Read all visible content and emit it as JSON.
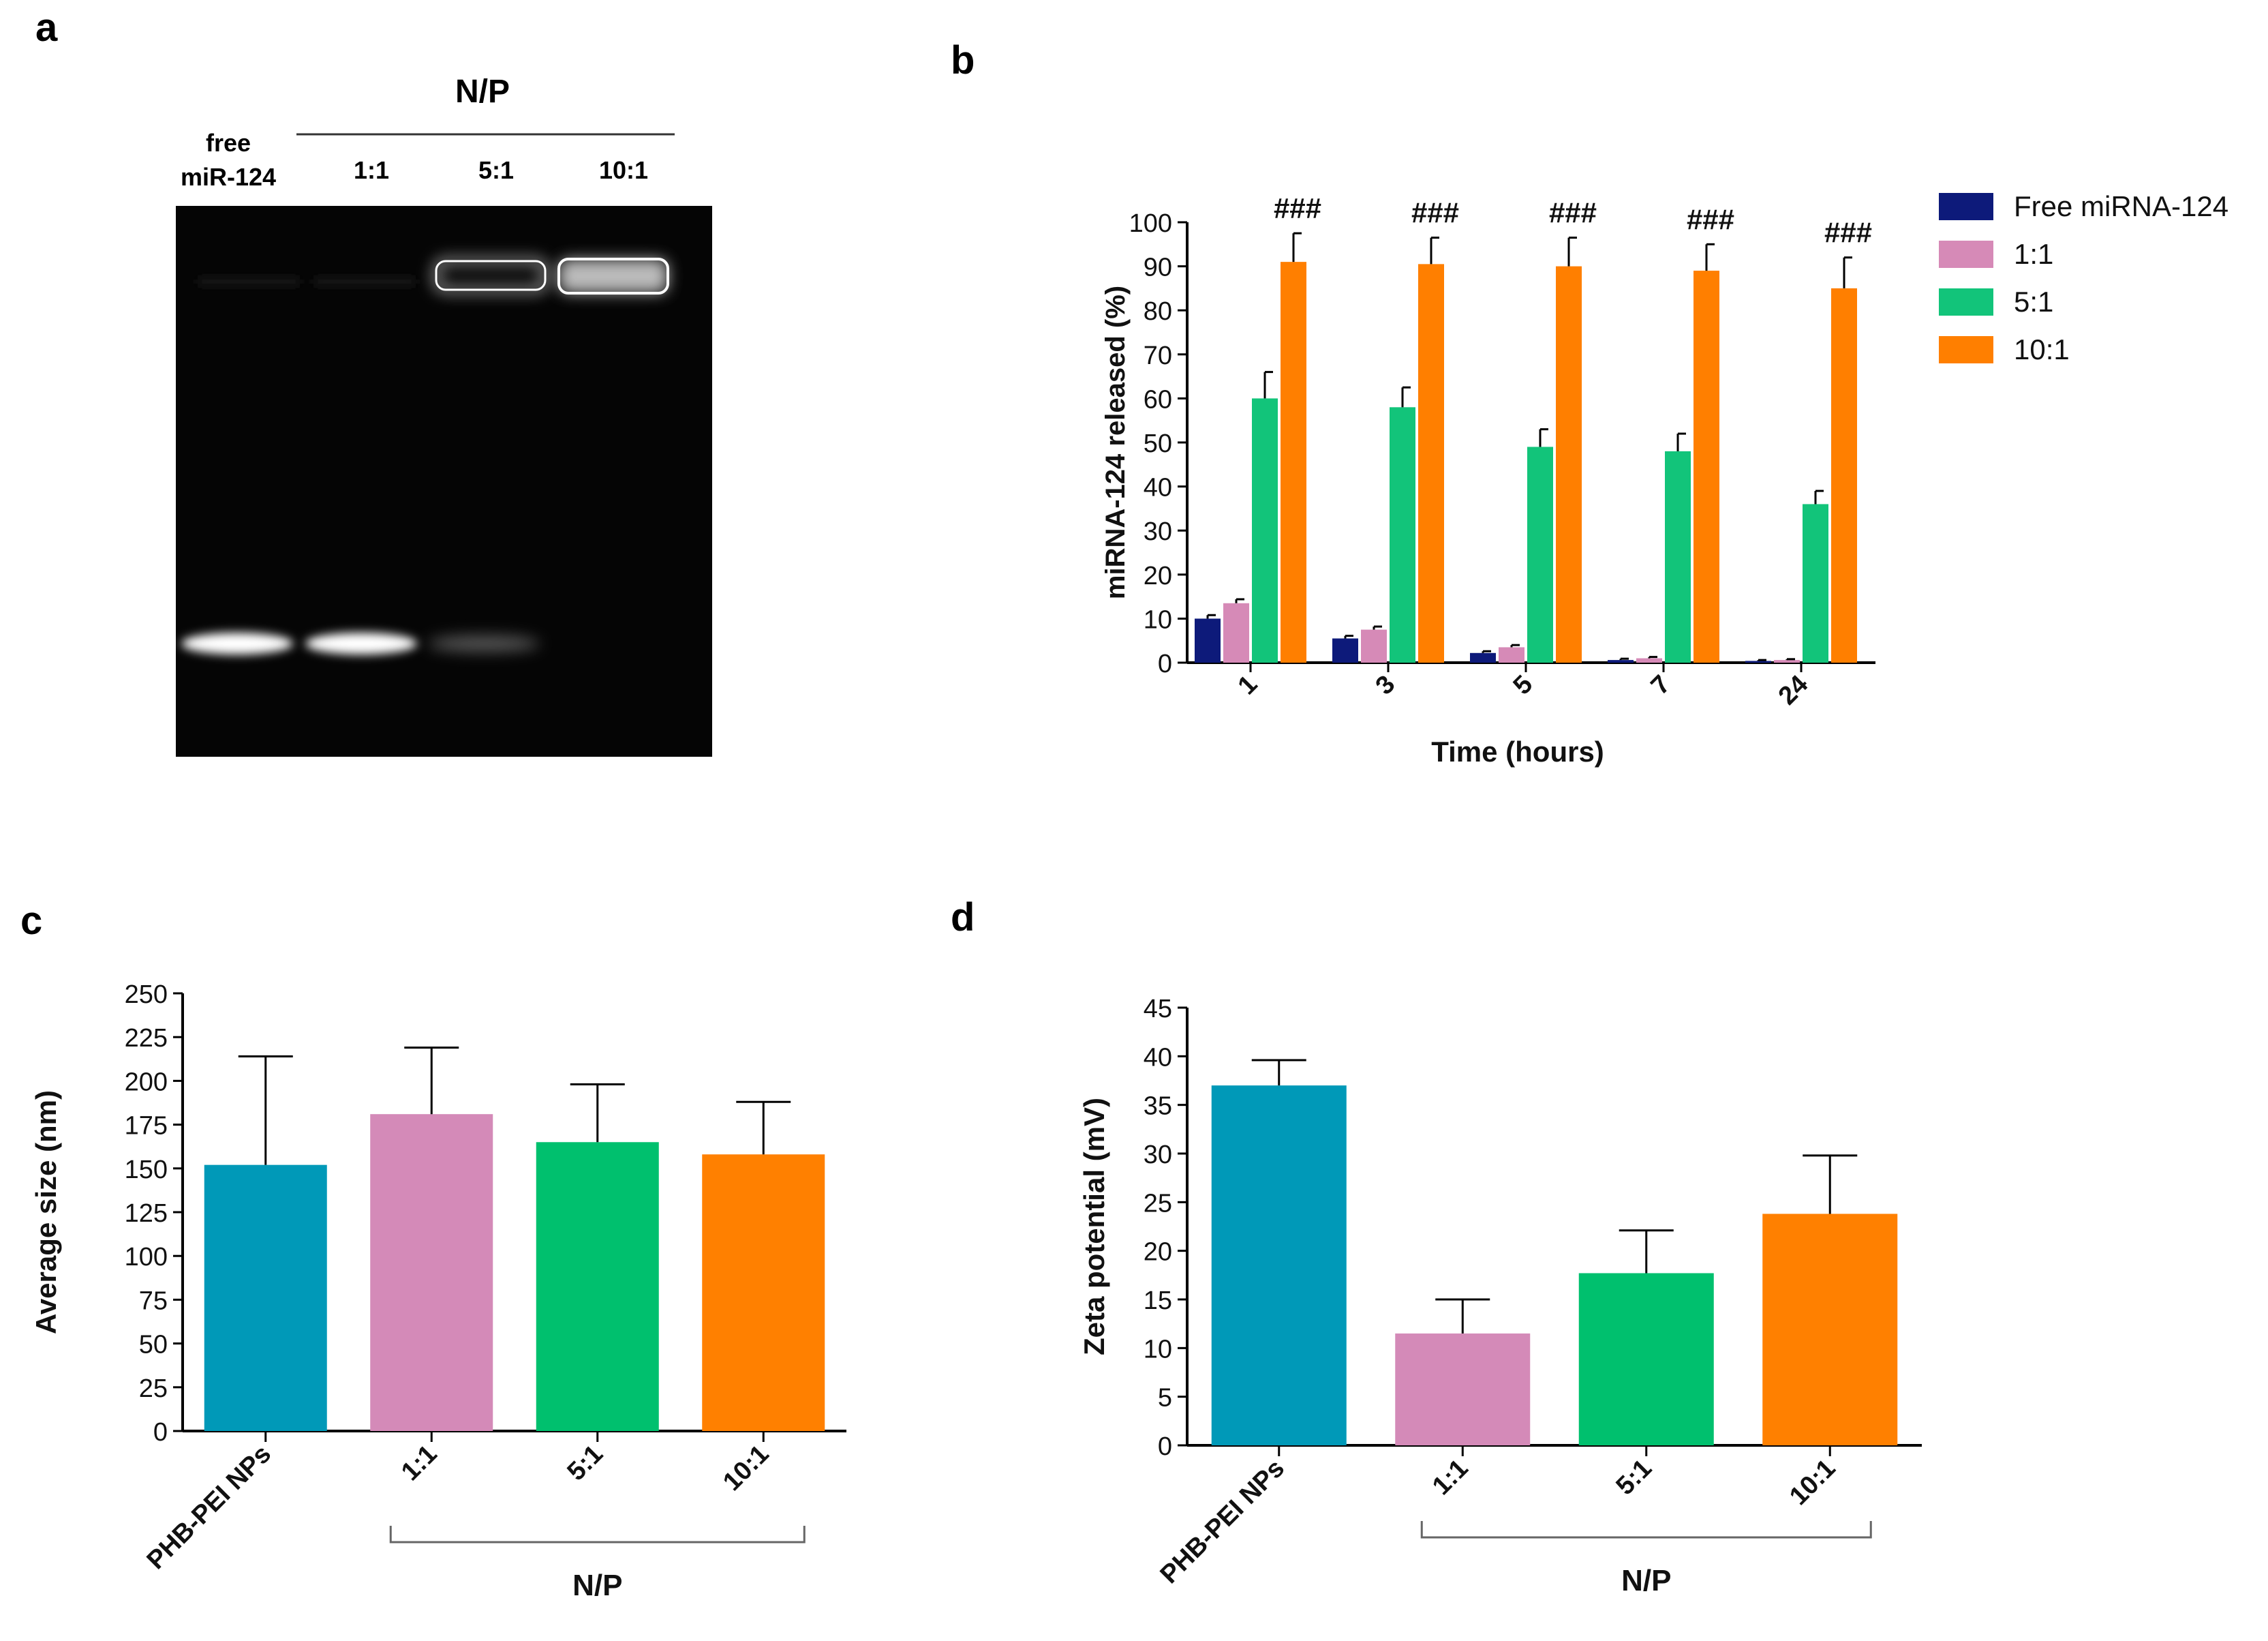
{
  "panels": {
    "a": {
      "letter": "a",
      "np_label": "N/P",
      "lanes": [
        "free\nmiR-124",
        "1:1",
        "5:1",
        "10:1"
      ]
    },
    "b": {
      "letter": "b"
    },
    "c": {
      "letter": "c",
      "np_group_label": "N/P"
    },
    "d": {
      "letter": "d",
      "np_group_label": "N/P"
    }
  },
  "chart_data": [
    {
      "panel": "b",
      "type": "bar",
      "title": "",
      "xlabel": "Time (hours)",
      "ylabel": "miRNA-124 released (%)",
      "ylim": [
        0,
        100
      ],
      "yticks": [
        0,
        10,
        20,
        30,
        40,
        50,
        60,
        70,
        80,
        90,
        100
      ],
      "categories": [
        "1",
        "3",
        "5",
        "7",
        "24"
      ],
      "series": [
        {
          "name": "Free miRNA-124",
          "color": "#0d1a7a",
          "values": [
            10,
            5.5,
            2.2,
            0.6,
            0.4
          ],
          "errors": [
            0.8,
            0.6,
            0.4,
            0.3,
            0.2
          ]
        },
        {
          "name": "1:1",
          "color": "#d68ab7",
          "values": [
            13.5,
            7.5,
            3.5,
            1.0,
            0.6
          ],
          "errors": [
            0.9,
            0.7,
            0.5,
            0.3,
            0.2
          ]
        },
        {
          "name": "5:1",
          "color": "#12c47a",
          "values": [
            60,
            58,
            49,
            48,
            36
          ],
          "errors": [
            6,
            4.5,
            4,
            4,
            3
          ]
        },
        {
          "name": "10:1",
          "color": "#ff7f00",
          "values": [
            91,
            90.5,
            90,
            89,
            85
          ],
          "errors": [
            6.5,
            6,
            6.5,
            6,
            7
          ]
        }
      ],
      "annotations": [
        "###",
        "###",
        "###",
        "###",
        "###"
      ],
      "legend_position": "top-right"
    },
    {
      "panel": "c",
      "type": "bar",
      "title": "",
      "xlabel": "",
      "ylabel": "Average size (nm)",
      "ylim": [
        0,
        250
      ],
      "yticks": [
        0,
        25,
        50,
        75,
        100,
        125,
        150,
        175,
        200,
        225,
        250
      ],
      "categories": [
        "PHB-PEI NPs",
        "1:1",
        "5:1",
        "10:1"
      ],
      "values": [
        152,
        181,
        165,
        158
      ],
      "errors": [
        62,
        38,
        33,
        30
      ],
      "colors": [
        "#0099b8",
        "#d48ab8",
        "#00c06e",
        "#ff8000"
      ]
    },
    {
      "panel": "d",
      "type": "bar",
      "title": "",
      "xlabel": "",
      "ylabel": "Zeta potential (mV)",
      "ylim": [
        0,
        45
      ],
      "yticks": [
        0,
        5,
        10,
        15,
        20,
        25,
        30,
        35,
        40,
        45
      ],
      "categories": [
        "PHB-PEI NPs",
        "1:1",
        "5:1",
        "10:1"
      ],
      "values": [
        37,
        11.5,
        17.7,
        23.8
      ],
      "errors": [
        2.6,
        3.5,
        4.4,
        6
      ],
      "colors": [
        "#0099b8",
        "#d48ab8",
        "#00c06e",
        "#ff8000"
      ]
    }
  ]
}
